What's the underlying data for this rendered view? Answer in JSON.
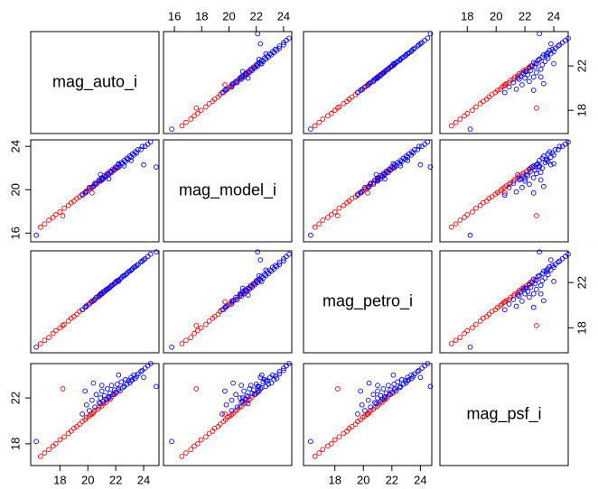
{
  "chart_data": {
    "type": "pairs",
    "variables": [
      "mag_auto_i",
      "mag_model_i",
      "mag_petro_i",
      "mag_psf_i"
    ],
    "limits": [
      [
        15.9,
        25.1
      ],
      [
        15.2,
        24.6
      ],
      [
        15.8,
        24.8
      ],
      [
        16.1,
        25.0
      ]
    ],
    "xticks": [
      [
        18,
        20,
        22,
        24
      ],
      [
        16,
        18,
        20,
        22,
        24
      ],
      [
        18,
        20,
        22,
        24
      ],
      [
        18,
        20,
        22,
        24
      ]
    ],
    "yticks": [
      [
        18,
        22
      ],
      [
        16,
        20,
        24
      ],
      [
        18,
        22
      ],
      [
        18,
        22
      ]
    ],
    "series": [
      {
        "color": "#ff0000",
        "values": [
          [
            16.6,
            16.55,
            16.6,
            16.9
          ],
          [
            16.9,
            16.85,
            16.9,
            17.2
          ],
          [
            17.2,
            17.2,
            17.15,
            17.5
          ],
          [
            17.5,
            17.45,
            17.5,
            17.8
          ],
          [
            17.7,
            17.7,
            17.75,
            18.0
          ],
          [
            18.0,
            17.95,
            18.0,
            18.35
          ],
          [
            18.2,
            17.6,
            18.2,
            22.8
          ],
          [
            18.3,
            18.3,
            18.3,
            18.6
          ],
          [
            18.6,
            18.55,
            18.6,
            18.9
          ],
          [
            18.8,
            18.8,
            18.85,
            19.1
          ],
          [
            19.0,
            18.95,
            19.0,
            19.35
          ],
          [
            19.2,
            19.2,
            19.2,
            19.5
          ],
          [
            19.4,
            19.35,
            19.45,
            19.7
          ],
          [
            19.6,
            19.6,
            19.6,
            19.95
          ],
          [
            19.8,
            19.75,
            19.8,
            20.1
          ],
          [
            19.9,
            19.9,
            19.95,
            20.3
          ],
          [
            20.1,
            20.05,
            20.1,
            20.4
          ],
          [
            20.2,
            20.2,
            20.25,
            20.55
          ],
          [
            20.4,
            20.35,
            20.4,
            20.7
          ],
          [
            20.5,
            20.5,
            20.5,
            20.9
          ],
          [
            20.7,
            20.65,
            20.7,
            21.0
          ],
          [
            20.8,
            20.8,
            20.85,
            21.2
          ],
          [
            21.0,
            20.95,
            21.0,
            21.3
          ],
          [
            21.1,
            21.1,
            21.1,
            21.5
          ],
          [
            21.3,
            21.25,
            21.3,
            21.6
          ],
          [
            21.4,
            21.4,
            21.45,
            21.8
          ],
          [
            21.6,
            21.55,
            21.6,
            21.9
          ],
          [
            21.7,
            21.7,
            21.7,
            22.1
          ],
          [
            21.9,
            21.85,
            21.9,
            22.3
          ],
          [
            22.0,
            22.0,
            22.05,
            22.4
          ],
          [
            20.3,
            19.7,
            20.3,
            20.6
          ],
          [
            22.2,
            22.1,
            22.2,
            22.7
          ]
        ]
      },
      {
        "color": "#0000ff",
        "values": [
          [
            19.6,
            19.5,
            19.6,
            20.6
          ],
          [
            19.9,
            19.8,
            19.9,
            21.4
          ],
          [
            20.1,
            20.2,
            20.1,
            20.9
          ],
          [
            20.3,
            20.2,
            20.35,
            21.8
          ],
          [
            20.5,
            20.6,
            20.5,
            21.2
          ],
          [
            20.6,
            20.5,
            20.7,
            22.3
          ],
          [
            20.8,
            20.9,
            20.8,
            21.6
          ],
          [
            20.9,
            20.8,
            21.0,
            22.0
          ],
          [
            21.0,
            21.1,
            21.0,
            22.6
          ],
          [
            21.1,
            21.0,
            21.2,
            21.7
          ],
          [
            21.2,
            21.3,
            21.2,
            22.2
          ],
          [
            21.3,
            21.2,
            21.35,
            21.9
          ],
          [
            21.4,
            21.5,
            21.4,
            22.8
          ],
          [
            21.5,
            21.4,
            21.5,
            22.1
          ],
          [
            21.6,
            21.7,
            21.6,
            22.4
          ],
          [
            21.7,
            21.6,
            21.75,
            23.1
          ],
          [
            21.8,
            21.9,
            21.8,
            22.3
          ],
          [
            21.9,
            21.8,
            21.9,
            22.7
          ],
          [
            22.0,
            22.1,
            22.0,
            22.5
          ],
          [
            22.1,
            22.0,
            22.15,
            23.2
          ],
          [
            22.2,
            22.3,
            22.2,
            22.8
          ],
          [
            22.3,
            22.2,
            22.3,
            22.6
          ],
          [
            22.4,
            22.5,
            22.4,
            23.4
          ],
          [
            22.5,
            22.4,
            22.55,
            22.9
          ],
          [
            22.6,
            22.7,
            22.6,
            23.0
          ],
          [
            22.7,
            22.6,
            22.7,
            23.6
          ],
          [
            22.8,
            22.9,
            22.8,
            23.2
          ],
          [
            22.9,
            22.8,
            22.95,
            23.5
          ],
          [
            23.0,
            23.1,
            23.0,
            23.3
          ],
          [
            23.1,
            23.0,
            23.1,
            23.8
          ],
          [
            23.2,
            23.3,
            23.2,
            23.6
          ],
          [
            23.3,
            23.2,
            23.35,
            24.0
          ],
          [
            23.4,
            23.5,
            23.4,
            23.7
          ],
          [
            23.5,
            23.4,
            23.5,
            23.9
          ],
          [
            23.6,
            23.7,
            23.6,
            24.1
          ],
          [
            23.8,
            23.7,
            23.8,
            24.3
          ],
          [
            23.9,
            24.0,
            23.9,
            24.4
          ],
          [
            24.1,
            24.0,
            24.1,
            24.6
          ],
          [
            24.3,
            24.2,
            24.3,
            24.8
          ],
          [
            24.5,
            24.4,
            24.5,
            25.0
          ],
          [
            20.4,
            20.3,
            20.4,
            23.3
          ],
          [
            21.0,
            20.9,
            21.0,
            23.1
          ],
          [
            19.8,
            19.7,
            19.8,
            22.6
          ],
          [
            22.2,
            22.4,
            22.1,
            24.0
          ],
          [
            24.9,
            22.1,
            24.7,
            23.0
          ],
          [
            16.3,
            15.8,
            16.3,
            18.2
          ],
          [
            20.9,
            21.4,
            20.9,
            21.5
          ],
          [
            21.5,
            21.0,
            21.5,
            22.0
          ],
          [
            22.6,
            22.2,
            22.6,
            23.0
          ],
          [
            23.1,
            22.7,
            23.1,
            23.5
          ],
          [
            24.0,
            22.3,
            24.0,
            23.8
          ]
        ]
      }
    ]
  }
}
